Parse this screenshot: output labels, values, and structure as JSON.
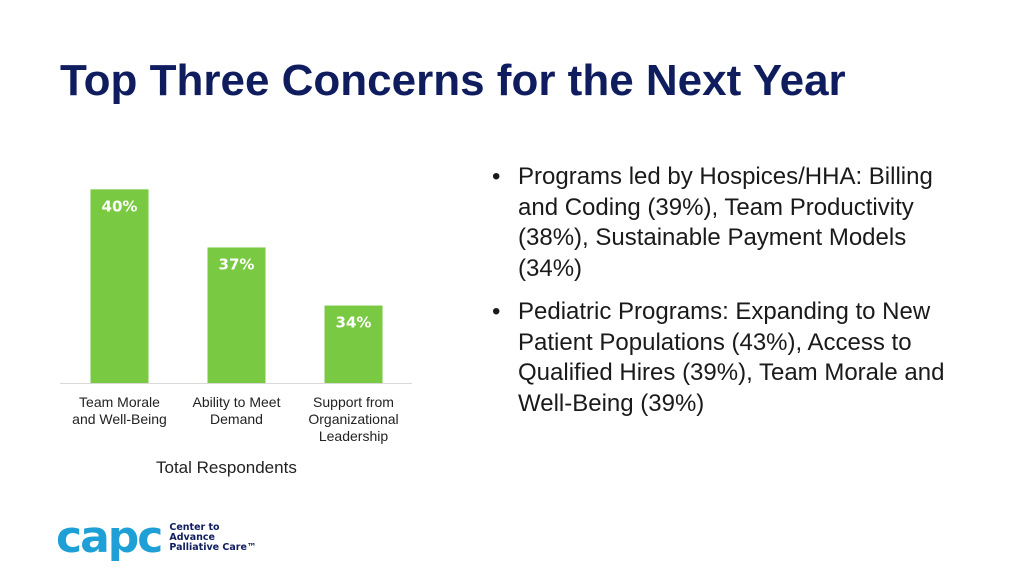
{
  "title": "Top Three Concerns for the Next Year",
  "chart_data": {
    "type": "bar",
    "categories": [
      "Team Morale and Well-Being",
      "Ability to Meet Demand",
      "Support from Organizational Leadership"
    ],
    "category_lines": [
      [
        "Team Morale",
        "and Well-Being"
      ],
      [
        "Ability to Meet",
        "Demand"
      ],
      [
        "Support from",
        "Organizational",
        "Leadership"
      ]
    ],
    "values": [
      40,
      37,
      34
    ],
    "value_labels": [
      "40%",
      "37%",
      "34%"
    ],
    "xlabel": "Total Respondents",
    "ylabel": "",
    "ylim": [
      30,
      41
    ],
    "grid": false,
    "color": "#7ac943"
  },
  "bullets": [
    "Programs led by Hospices/HHA: Billing and Coding (39%), Team Productivity (38%), Sustainable Payment Models (34%)",
    "Pediatric Programs: Expanding to New Patient Populations (43%), Access to Qualified Hires (39%), Team Morale and Well-Being (39%)"
  ],
  "logo": {
    "word": "capc",
    "lines": [
      "Center to",
      "Advance",
      "Palliative Care™"
    ],
    "color": "#1e9fd6"
  }
}
